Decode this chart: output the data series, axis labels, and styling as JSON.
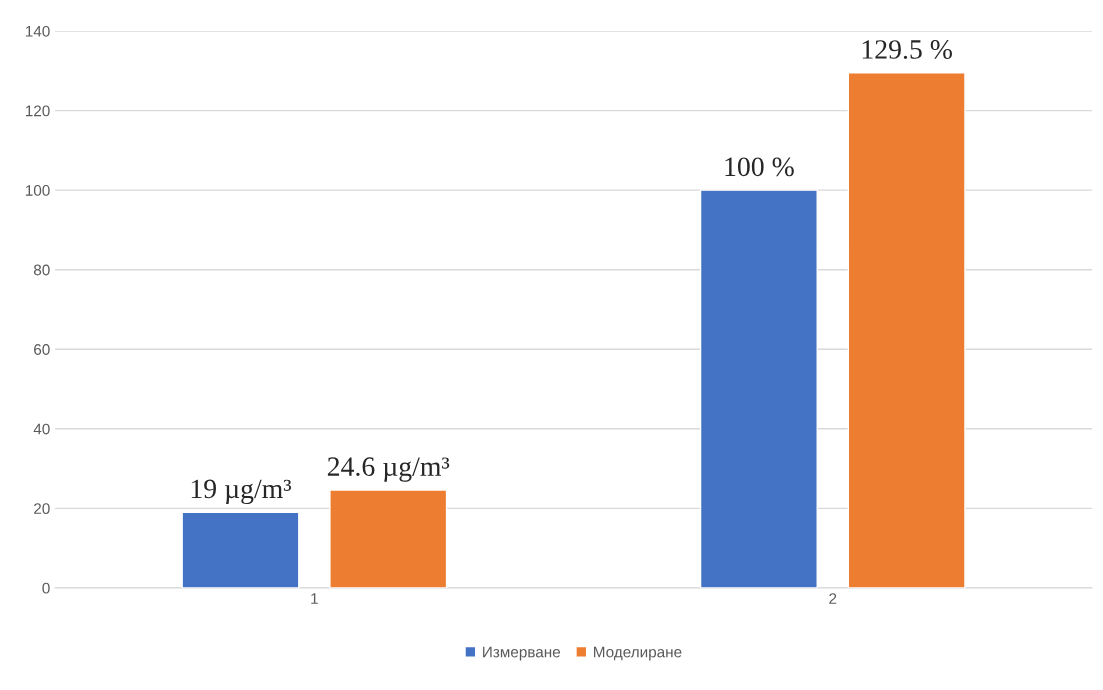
{
  "chart_data": {
    "type": "bar",
    "categories": [
      "1",
      "2"
    ],
    "series": [
      {
        "name": "Измерване",
        "color": "#4472c4",
        "values": [
          19,
          100
        ],
        "value_labels": [
          "19 µg/m³",
          "100 %"
        ]
      },
      {
        "name": "Моделиране",
        "color": "#ed7d31",
        "values": [
          24.6,
          129.5
        ],
        "value_labels": [
          "24.6 µg/m³",
          "129.5 %"
        ]
      }
    ],
    "ylim": [
      0,
      140
    ],
    "yticks": [
      0,
      20,
      40,
      60,
      80,
      100,
      120,
      140
    ],
    "grid": "y",
    "legend": "bottom"
  }
}
